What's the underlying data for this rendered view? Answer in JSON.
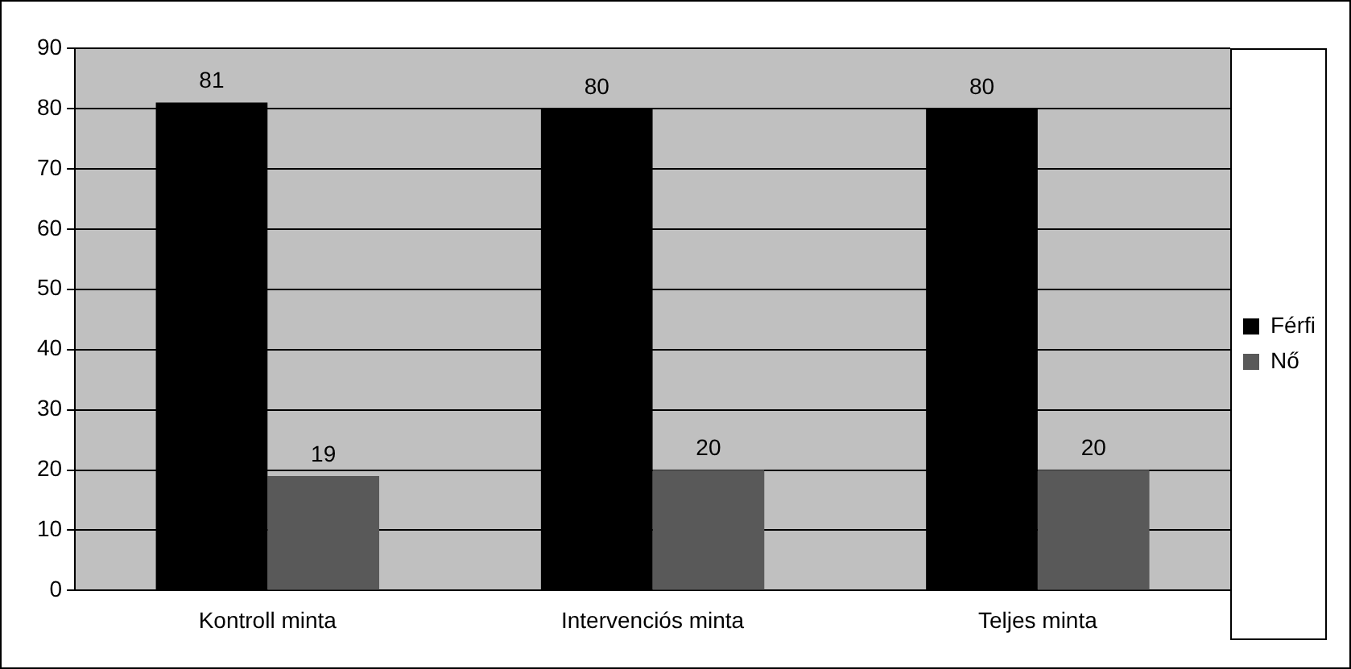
{
  "chart_data": {
    "type": "bar",
    "categories": [
      "Kontroll minta",
      "Intervenciós minta",
      "Teljes minta"
    ],
    "series": [
      {
        "name": "Férfi",
        "color": "#000000",
        "values": [
          81,
          80,
          80
        ]
      },
      {
        "name": "Nő",
        "color": "#595959",
        "values": [
          19,
          20,
          20
        ]
      }
    ],
    "ylim": [
      0,
      90
    ],
    "yticks": [
      0,
      10,
      20,
      30,
      40,
      50,
      60,
      70,
      80,
      90
    ],
    "grid": "y",
    "legend": "right",
    "data_labels": true
  }
}
